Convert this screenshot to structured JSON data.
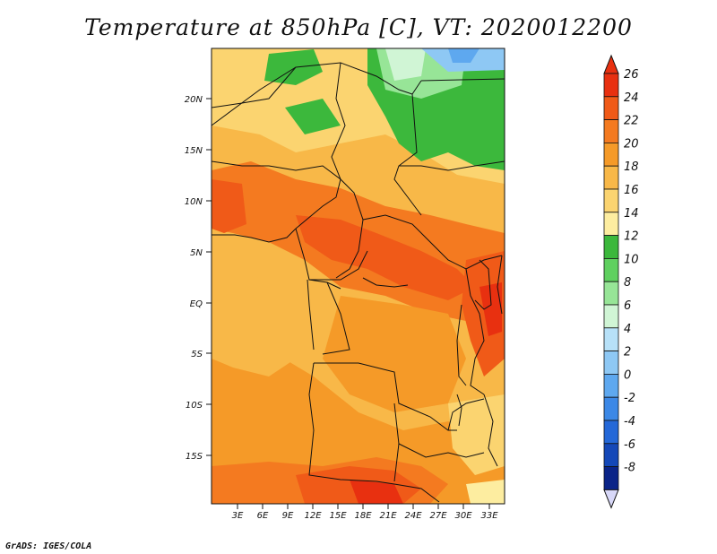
{
  "title": "Temperature at 850hPa [C], VT: 2020012200",
  "credit": "GrADS: IGES/COLA",
  "map": {
    "region": "Central Africa",
    "lat_labels": [
      "20N",
      "15N",
      "10N",
      "5N",
      "EQ",
      "5S",
      "10S",
      "15S"
    ],
    "lat_values": [
      20,
      15,
      10,
      5,
      0,
      -5,
      -10,
      -15
    ],
    "lon_labels": [
      "3E",
      "6E",
      "9E",
      "12E",
      "15E",
      "18E",
      "21E",
      "24E",
      "27E",
      "30E",
      "33E"
    ],
    "lon_values": [
      3,
      6,
      9,
      12,
      15,
      18,
      21,
      24,
      27,
      30,
      33
    ]
  },
  "colorbar": {
    "labels": [
      "26",
      "24",
      "22",
      "20",
      "18",
      "16",
      "14",
      "12",
      "10",
      "8",
      "6",
      "4",
      "2",
      "0",
      "-2",
      "-4",
      "-6",
      "-8"
    ],
    "colors": [
      "#e83010",
      "#f05a18",
      "#f47a20",
      "#f59a28",
      "#f8b848",
      "#fbd470",
      "#fdeda0",
      "#3cb83c",
      "#5fd05f",
      "#97e597",
      "#d0f5d5",
      "#b7e1f8",
      "#8ec8f4",
      "#5ea8ef",
      "#3c88e6",
      "#2468d8",
      "#1448b8",
      "#0a2488"
    ]
  },
  "legend": {
    "scale": "red (warm) to blue (cold)",
    "colors": {
      "max": "#e83010",
      "min": "#0a2488"
    }
  }
}
